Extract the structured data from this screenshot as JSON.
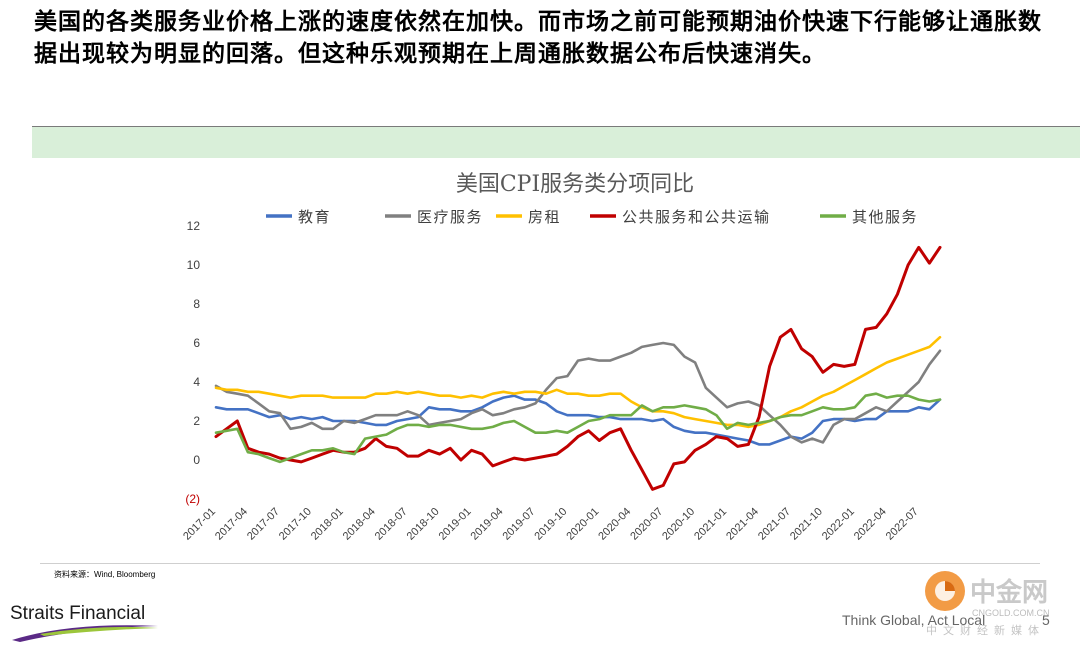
{
  "headline": "美国的各类服务业价格上涨的速度依然在加快。而市场之前可能预期油价快速下行能够让通胀数据出现较为明显的回落。但这种乐观预期在上周通胀数据公布后快速消失。",
  "footer": {
    "source": "资料来源：Wind, Bloomberg",
    "company": "Straits Financial",
    "slogan": "Think Global, Act Local",
    "page": "5"
  },
  "watermark": {
    "name": "中金网",
    "domain": "CNGOLD.COM.CN",
    "tagline": "中文财经新媒体"
  },
  "colors": {
    "band": "#d9efd9",
    "swoosh_purple": "#5b2a86",
    "swoosh_green": "#9cc63b",
    "watermark_orange": "#f08a24"
  },
  "chart_data": {
    "type": "line",
    "title": "美国CPI服务类分项同比",
    "ylim": [
      -2,
      12
    ],
    "yticks": [
      -2,
      0,
      2,
      4,
      6,
      8,
      10,
      12
    ],
    "ytick_labels": [
      "(2)",
      "0",
      "2",
      "4",
      "6",
      "8",
      "10",
      "12"
    ],
    "grid": false,
    "legend": "top",
    "x": [
      "2017-01",
      "2017-02",
      "2017-03",
      "2017-04",
      "2017-05",
      "2017-06",
      "2017-07",
      "2017-08",
      "2017-09",
      "2017-10",
      "2017-11",
      "2017-12",
      "2018-01",
      "2018-02",
      "2018-03",
      "2018-04",
      "2018-05",
      "2018-06",
      "2018-07",
      "2018-08",
      "2018-09",
      "2018-10",
      "2018-11",
      "2018-12",
      "2019-01",
      "2019-02",
      "2019-03",
      "2019-04",
      "2019-05",
      "2019-06",
      "2019-07",
      "2019-08",
      "2019-09",
      "2019-10",
      "2019-11",
      "2019-12",
      "2020-01",
      "2020-02",
      "2020-03",
      "2020-04",
      "2020-05",
      "2020-06",
      "2020-07",
      "2020-08",
      "2020-09",
      "2020-10",
      "2020-11",
      "2020-12",
      "2021-01",
      "2021-02",
      "2021-03",
      "2021-04",
      "2021-05",
      "2021-06",
      "2021-07",
      "2021-08",
      "2021-09",
      "2021-10",
      "2021-11",
      "2021-12",
      "2022-01",
      "2022-02",
      "2022-03",
      "2022-04",
      "2022-05",
      "2022-06",
      "2022-07",
      "2022-08",
      "2022-09"
    ],
    "xtick_labels": [
      "2017-01",
      "2017-04",
      "2017-07",
      "2017-10",
      "2018-01",
      "2018-04",
      "2018-07",
      "2018-10",
      "2019-01",
      "2019-04",
      "2019-07",
      "2019-10",
      "2020-01",
      "2020-04",
      "2020-07",
      "2020-10",
      "2021-01",
      "2021-04",
      "2021-07",
      "2021-10",
      "2022-01",
      "2022-04",
      "2022-07"
    ],
    "series": [
      {
        "name": "教育",
        "color": "#4472c4",
        "values": [
          2.7,
          2.6,
          2.6,
          2.6,
          2.4,
          2.2,
          2.3,
          2.1,
          2.2,
          2.1,
          2.2,
          2.0,
          2.0,
          2.0,
          1.9,
          1.8,
          1.8,
          2.0,
          2.1,
          2.2,
          2.7,
          2.6,
          2.6,
          2.5,
          2.5,
          2.7,
          3.0,
          3.2,
          3.3,
          3.1,
          3.1,
          2.9,
          2.5,
          2.3,
          2.3,
          2.3,
          2.2,
          2.2,
          2.1,
          2.1,
          2.1,
          2.0,
          2.1,
          1.7,
          1.5,
          1.4,
          1.4,
          1.3,
          1.2,
          1.1,
          1.0,
          0.8,
          0.8,
          1.0,
          1.2,
          1.1,
          1.4,
          2.0,
          2.1,
          2.1,
          2.0,
          2.1,
          2.1,
          2.5,
          2.5,
          2.5,
          2.7,
          2.6,
          3.1
        ]
      },
      {
        "name": "医疗服务",
        "color": "#808080",
        "values": [
          3.8,
          3.5,
          3.4,
          3.3,
          2.9,
          2.5,
          2.4,
          1.6,
          1.7,
          1.9,
          1.6,
          1.6,
          2.0,
          1.9,
          2.1,
          2.3,
          2.3,
          2.3,
          2.5,
          2.3,
          1.8,
          1.9,
          2.0,
          2.1,
          2.4,
          2.6,
          2.3,
          2.4,
          2.6,
          2.7,
          2.9,
          3.6,
          4.2,
          4.3,
          5.1,
          5.2,
          5.1,
          5.1,
          5.3,
          5.5,
          5.8,
          5.9,
          6.0,
          5.9,
          5.3,
          5.0,
          3.7,
          3.2,
          2.7,
          2.9,
          3.0,
          2.8,
          2.3,
          1.8,
          1.2,
          0.9,
          1.1,
          0.9,
          1.8,
          2.1,
          2.1,
          2.4,
          2.7,
          2.5,
          3.0,
          3.5,
          4.0,
          4.9,
          5.6
        ]
      },
      {
        "name": "房租",
        "color": "#ffc000",
        "values": [
          3.7,
          3.6,
          3.6,
          3.5,
          3.5,
          3.4,
          3.3,
          3.2,
          3.3,
          3.3,
          3.3,
          3.2,
          3.2,
          3.2,
          3.2,
          3.4,
          3.4,
          3.5,
          3.4,
          3.5,
          3.4,
          3.3,
          3.3,
          3.2,
          3.3,
          3.2,
          3.4,
          3.5,
          3.4,
          3.5,
          3.5,
          3.4,
          3.6,
          3.4,
          3.4,
          3.3,
          3.3,
          3.4,
          3.4,
          3.0,
          2.7,
          2.5,
          2.5,
          2.4,
          2.2,
          2.1,
          2.0,
          1.9,
          1.8,
          1.8,
          1.7,
          1.8,
          2.0,
          2.2,
          2.5,
          2.7,
          3.0,
          3.3,
          3.5,
          3.8,
          4.1,
          4.4,
          4.7,
          5.0,
          5.2,
          5.4,
          5.6,
          5.8,
          6.3
        ]
      },
      {
        "name": "公共服务和公共运输",
        "color": "#c00000",
        "values": [
          1.2,
          1.6,
          2.0,
          0.6,
          0.4,
          0.3,
          0.1,
          0.0,
          -0.1,
          0.1,
          0.3,
          0.5,
          0.4,
          0.4,
          0.6,
          1.1,
          0.7,
          0.6,
          0.2,
          0.2,
          0.5,
          0.3,
          0.6,
          0.0,
          0.5,
          0.3,
          -0.3,
          -0.1,
          0.1,
          0.0,
          0.1,
          0.2,
          0.3,
          0.7,
          1.2,
          1.5,
          1.0,
          1.4,
          1.6,
          0.5,
          -0.5,
          -1.5,
          -1.3,
          -0.2,
          -0.1,
          0.5,
          0.8,
          1.2,
          1.1,
          0.7,
          0.8,
          2.2,
          4.8,
          6.3,
          6.7,
          5.7,
          5.3,
          4.5,
          4.9,
          4.8,
          4.9,
          6.7,
          6.8,
          7.5,
          8.5,
          10.0,
          10.9,
          10.1,
          10.9
        ]
      },
      {
        "name": "其他服务",
        "color": "#70ad47",
        "values": [
          1.4,
          1.5,
          1.6,
          0.4,
          0.3,
          0.1,
          -0.1,
          0.1,
          0.3,
          0.5,
          0.5,
          0.6,
          0.4,
          0.3,
          1.1,
          1.2,
          1.3,
          1.6,
          1.8,
          1.8,
          1.7,
          1.8,
          1.8,
          1.7,
          1.6,
          1.6,
          1.7,
          1.9,
          2.0,
          1.7,
          1.4,
          1.4,
          1.5,
          1.4,
          1.7,
          2.0,
          2.1,
          2.3,
          2.3,
          2.3,
          2.8,
          2.5,
          2.7,
          2.7,
          2.8,
          2.7,
          2.6,
          2.3,
          1.6,
          1.9,
          1.8,
          1.9,
          2.0,
          2.2,
          2.3,
          2.3,
          2.5,
          2.7,
          2.6,
          2.6,
          2.7,
          3.3,
          3.4,
          3.2,
          3.3,
          3.3,
          3.1,
          3.0,
          3.1
        ]
      }
    ]
  }
}
